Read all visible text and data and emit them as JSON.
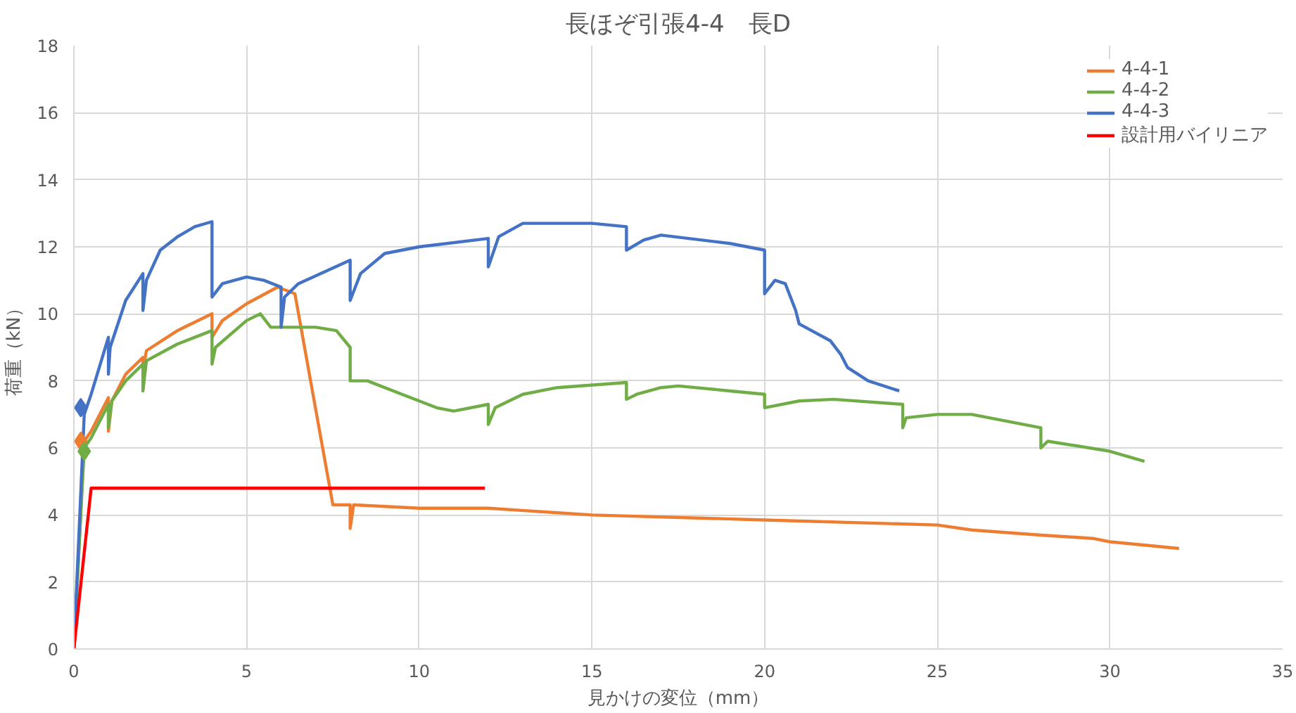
{
  "chart_data": {
    "type": "line",
    "title": "長ほぞ引張4-4　長D",
    "xlabel": "見かけの変位（mm）",
    "ylabel": "荷重（kN）",
    "xlim": [
      0,
      35
    ],
    "xticks": [
      0,
      5,
      10,
      15,
      20,
      25,
      30,
      35
    ],
    "ylim": [
      0,
      18
    ],
    "yticks": [
      0,
      2,
      4,
      6,
      8,
      10,
      12,
      14,
      16,
      18
    ],
    "grid": true,
    "legend": "top right",
    "marker": "none",
    "line_style": "solid",
    "series": [
      {
        "name": "4-4-1",
        "color": "#ed7d31",
        "x": [
          0,
          0.3,
          0.5,
          1,
          1,
          1.1,
          1.5,
          2,
          2,
          2.1,
          3,
          4,
          4,
          4.3,
          5,
          5.9,
          6.4,
          7.5,
          8,
          8,
          8.1,
          10,
          12,
          15,
          20,
          25,
          26,
          28,
          29.5,
          30,
          32
        ],
        "values": [
          0,
          6.2,
          6.5,
          7.5,
          6.5,
          7.4,
          8.2,
          8.7,
          8.3,
          8.9,
          9.5,
          10.0,
          9.3,
          9.8,
          10.3,
          10.8,
          10.6,
          4.3,
          4.3,
          3.6,
          4.3,
          4.2,
          4.2,
          4.0,
          3.85,
          3.7,
          3.55,
          3.4,
          3.3,
          3.2,
          3.0
        ]
      },
      {
        "name": "4-4-2",
        "color": "#70ad47",
        "x": [
          0,
          0.3,
          0.5,
          1,
          1,
          1.1,
          1.5,
          2,
          2,
          2.1,
          3,
          4,
          4,
          4.1,
          5,
          5.4,
          5.7,
          7,
          7.6,
          8,
          8,
          8.5,
          9.5,
          10.5,
          11,
          12,
          12,
          12.2,
          13,
          14,
          16,
          16,
          16.3,
          17,
          17.5,
          19,
          20,
          20,
          21,
          22,
          24,
          24,
          24.1,
          25,
          26,
          27,
          28,
          28,
          28.2,
          30,
          31
        ],
        "values": [
          0,
          6.0,
          6.3,
          7.3,
          6.6,
          7.4,
          8.0,
          8.5,
          7.7,
          8.6,
          9.1,
          9.5,
          8.5,
          9.0,
          9.8,
          10.0,
          9.6,
          9.6,
          9.5,
          9.0,
          8.0,
          8.0,
          7.6,
          7.2,
          7.1,
          7.3,
          6.7,
          7.2,
          7.6,
          7.8,
          7.95,
          7.45,
          7.6,
          7.8,
          7.85,
          7.7,
          7.6,
          7.2,
          7.4,
          7.45,
          7.3,
          6.6,
          6.9,
          7.0,
          7.0,
          6.8,
          6.6,
          6.0,
          6.2,
          5.9,
          5.6
        ]
      },
      {
        "name": "4-4-3",
        "color": "#4472c4",
        "x": [
          0,
          0.3,
          0.5,
          1,
          1,
          1.05,
          1.5,
          2,
          2,
          2.1,
          2.5,
          3,
          3.5,
          4,
          4,
          4.3,
          5,
          5.5,
          6,
          6,
          6.1,
          6.5,
          8,
          8,
          8.3,
          9,
          10,
          12,
          12,
          12.3,
          13,
          15,
          16,
          16,
          16.5,
          17,
          19,
          20,
          20,
          20.3,
          20.6,
          20.9,
          21,
          21.9,
          22.2,
          22.4,
          23,
          23.9
        ],
        "values": [
          0,
          7.0,
          7.6,
          9.3,
          8.2,
          9.0,
          10.4,
          11.2,
          10.1,
          11.0,
          11.9,
          12.3,
          12.6,
          12.75,
          10.5,
          10.9,
          11.1,
          11.0,
          10.8,
          9.6,
          10.5,
          10.9,
          11.6,
          10.4,
          11.2,
          11.8,
          12.0,
          12.25,
          11.4,
          12.3,
          12.7,
          12.7,
          12.6,
          11.9,
          12.2,
          12.35,
          12.1,
          11.9,
          10.6,
          11.0,
          10.9,
          10.1,
          9.7,
          9.2,
          8.8,
          8.4,
          8.0,
          7.7
        ]
      },
      {
        "name": "設計用バイリニア",
        "color": "#ff0000",
        "x": [
          0,
          0.5,
          11.9
        ],
        "values": [
          0,
          4.8,
          4.8
        ]
      },
      {
        "type": "scatter",
        "marker": "diamond",
        "color": "#4472c4",
        "x": [
          0.2
        ],
        "values": [
          7.2
        ]
      },
      {
        "type": "scatter",
        "marker": "diamond",
        "color": "#ed7d31",
        "x": [
          0.2
        ],
        "values": [
          6.2
        ]
      },
      {
        "type": "scatter",
        "marker": "diamond",
        "color": "#70ad47",
        "x": [
          0.3
        ],
        "values": [
          5.9
        ]
      }
    ]
  }
}
